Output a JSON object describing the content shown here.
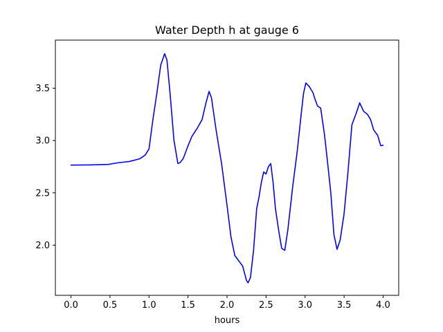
{
  "chart_data": {
    "type": "line",
    "title": "Water Depth h at gauge 6",
    "xlabel": "hours",
    "ylabel": "",
    "xlim": [
      -0.2,
      4.2
    ],
    "ylim": [
      1.52,
      3.96
    ],
    "xticks": [
      0.0,
      0.5,
      1.0,
      1.5,
      2.0,
      2.5,
      3.0,
      3.5,
      4.0
    ],
    "xtick_labels": [
      "0.0",
      "0.5",
      "1.0",
      "1.5",
      "2.0",
      "2.5",
      "3.0",
      "3.5",
      "4.0"
    ],
    "yticks": [
      2.0,
      2.5,
      3.0,
      3.5
    ],
    "ytick_labels": [
      "2.0",
      "2.5",
      "3.0",
      "3.5"
    ],
    "grid": false,
    "series": [
      {
        "name": "",
        "color": "#0000ff",
        "points": [
          [
            0.0,
            2.765
          ],
          [
            0.25,
            2.767
          ],
          [
            0.48,
            2.772
          ],
          [
            0.6,
            2.787
          ],
          [
            0.75,
            2.8
          ],
          [
            0.88,
            2.825
          ],
          [
            0.95,
            2.86
          ],
          [
            1.0,
            2.92
          ],
          [
            1.05,
            3.2
          ],
          [
            1.1,
            3.45
          ],
          [
            1.15,
            3.72
          ],
          [
            1.2,
            3.83
          ],
          [
            1.23,
            3.77
          ],
          [
            1.27,
            3.45
          ],
          [
            1.32,
            3.0
          ],
          [
            1.37,
            2.78
          ],
          [
            1.4,
            2.79
          ],
          [
            1.44,
            2.83
          ],
          [
            1.5,
            2.95
          ],
          [
            1.55,
            3.04
          ],
          [
            1.62,
            3.12
          ],
          [
            1.68,
            3.2
          ],
          [
            1.73,
            3.36
          ],
          [
            1.77,
            3.47
          ],
          [
            1.8,
            3.41
          ],
          [
            1.86,
            3.1
          ],
          [
            1.93,
            2.78
          ],
          [
            2.0,
            2.38
          ],
          [
            2.05,
            2.08
          ],
          [
            2.1,
            1.9
          ],
          [
            2.15,
            1.85
          ],
          [
            2.2,
            1.8
          ],
          [
            2.25,
            1.66
          ],
          [
            2.27,
            1.64
          ],
          [
            2.3,
            1.69
          ],
          [
            2.34,
            1.95
          ],
          [
            2.38,
            2.35
          ],
          [
            2.41,
            2.46
          ],
          [
            2.44,
            2.6
          ],
          [
            2.47,
            2.7
          ],
          [
            2.5,
            2.68
          ],
          [
            2.53,
            2.75
          ],
          [
            2.56,
            2.78
          ],
          [
            2.59,
            2.6
          ],
          [
            2.62,
            2.35
          ],
          [
            2.66,
            2.15
          ],
          [
            2.7,
            1.97
          ],
          [
            2.74,
            1.95
          ],
          [
            2.78,
            2.15
          ],
          [
            2.84,
            2.55
          ],
          [
            2.9,
            2.9
          ],
          [
            2.95,
            3.25
          ],
          [
            2.98,
            3.45
          ],
          [
            3.01,
            3.55
          ],
          [
            3.05,
            3.52
          ],
          [
            3.1,
            3.46
          ],
          [
            3.13,
            3.39
          ],
          [
            3.16,
            3.33
          ],
          [
            3.2,
            3.31
          ],
          [
            3.25,
            3.05
          ],
          [
            3.29,
            2.78
          ],
          [
            3.33,
            2.5
          ],
          [
            3.37,
            2.1
          ],
          [
            3.41,
            1.96
          ],
          [
            3.45,
            2.05
          ],
          [
            3.5,
            2.3
          ],
          [
            3.55,
            2.7
          ],
          [
            3.6,
            3.15
          ],
          [
            3.65,
            3.25
          ],
          [
            3.7,
            3.36
          ],
          [
            3.75,
            3.28
          ],
          [
            3.8,
            3.25
          ],
          [
            3.84,
            3.2
          ],
          [
            3.88,
            3.1
          ],
          [
            3.93,
            3.05
          ],
          [
            3.97,
            2.95
          ],
          [
            4.0,
            2.955
          ]
        ]
      }
    ]
  }
}
